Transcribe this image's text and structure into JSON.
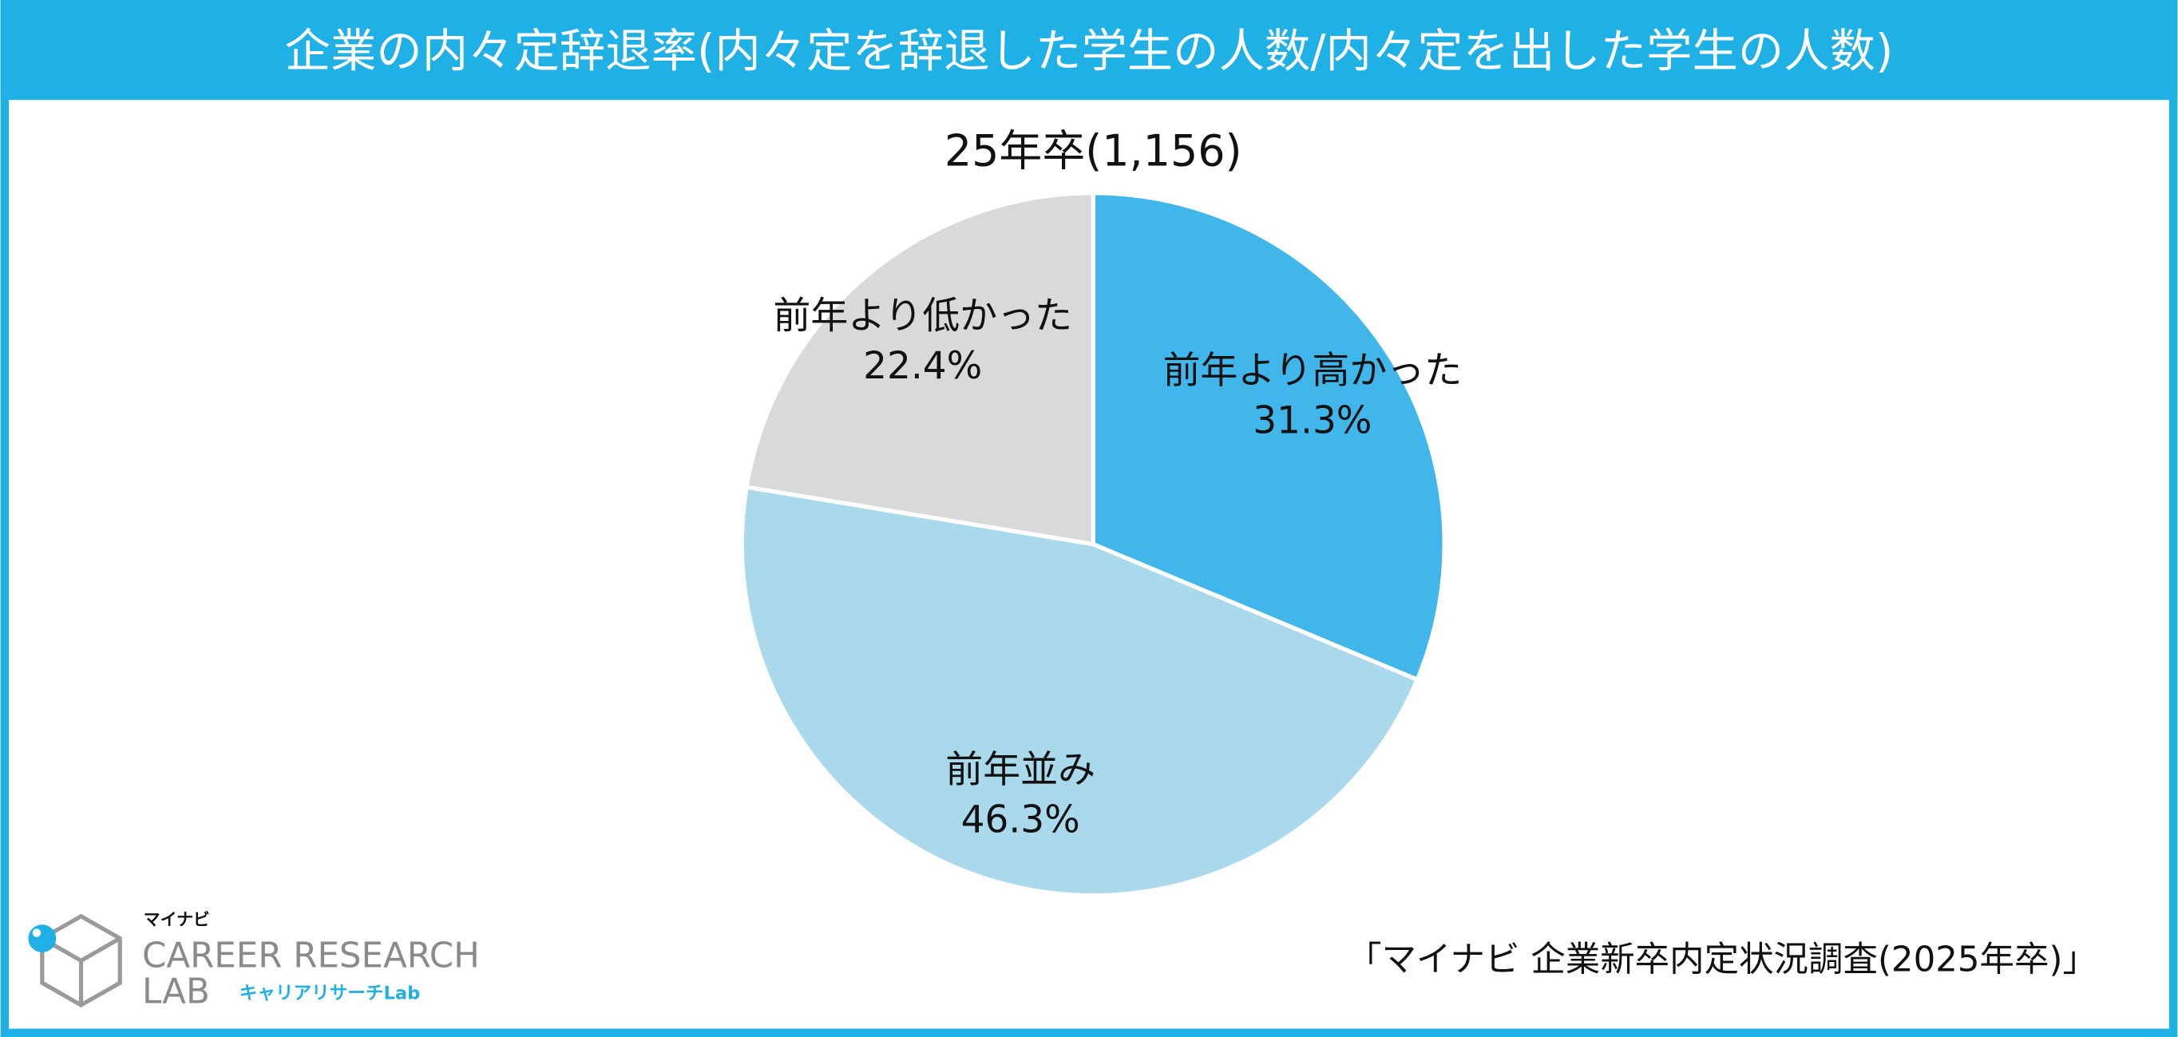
{
  "chart_data": {
    "type": "pie",
    "title": "企業の内々定辞退率(内々定を辞退した学生の人数/内々定を出した学生の人数)",
    "subtitle": "25年卒(1,156)",
    "categories": [
      "前年より高かった",
      "前年並み",
      "前年より低かった"
    ],
    "values": [
      31.3,
      46.3,
      22.4
    ],
    "value_labels": [
      "31.3%",
      "46.3%",
      "22.4%"
    ],
    "colors": [
      "#41b6ea",
      "#aad9ec",
      "#d9d9d9"
    ],
    "source": "「マイナビ 企業新卒内定状況調査(2025年卒)」"
  },
  "logo": {
    "brand": "マイナビ",
    "line1": "CAREER RESEARCH",
    "line2": "LAB",
    "tagline": "キャリアリサーチLab"
  }
}
